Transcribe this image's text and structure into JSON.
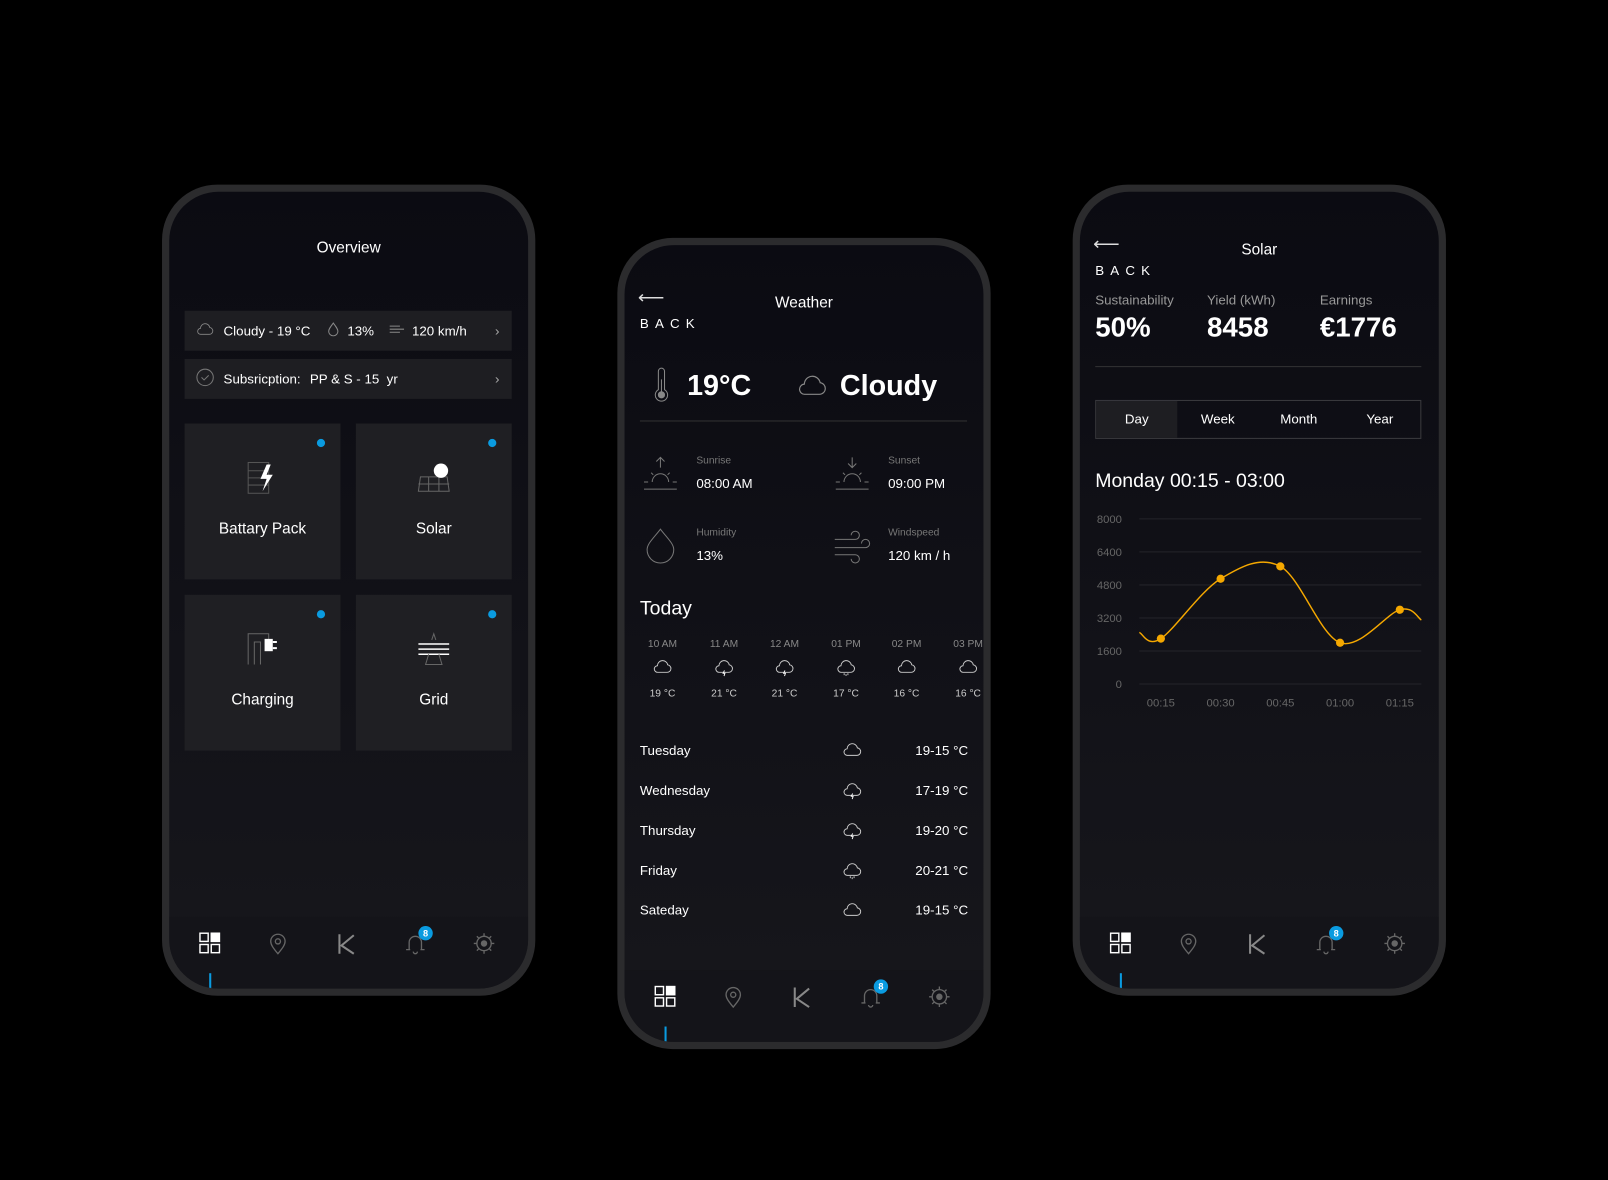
{
  "colors": {
    "accent": "#0a9be0",
    "chart_line": "#f5a800",
    "background": "#000000"
  },
  "nav": {
    "badge": "8",
    "items": [
      "dashboard-icon",
      "location-pin-icon",
      "k-logo-icon",
      "bell-icon",
      "gear-icon"
    ]
  },
  "overview": {
    "title": "Overview",
    "weather_bar": {
      "condition": "Cloudy - 19 °C",
      "humidity": "13%",
      "wind": "120 km/h"
    },
    "subscription": {
      "label": "Subsricption:",
      "value": "PP & S - 15  yr"
    },
    "tiles": [
      {
        "label": "Battary Pack",
        "icon": "battery-bolt-icon"
      },
      {
        "label": "Solar",
        "icon": "solar-panel-icon"
      },
      {
        "label": "Charging",
        "icon": "charging-plug-icon"
      },
      {
        "label": "Grid",
        "icon": "grid-pylon-icon"
      }
    ]
  },
  "weather": {
    "back": "BACK",
    "title": "Weather",
    "temperature": "19°C",
    "condition": "Cloudy",
    "sunrise": {
      "label": "Sunrise",
      "value": "08:00 AM"
    },
    "sunset": {
      "label": "Sunset",
      "value": "09:00 PM"
    },
    "humidity": {
      "label": "Humidity",
      "value": "13%"
    },
    "windspeed": {
      "label": "Windspeed",
      "value": "120 km / h"
    },
    "today_label": "Today",
    "hourly": [
      {
        "time": "10 AM",
        "icon": "cloud",
        "temp": "19 °C"
      },
      {
        "time": "11 AM",
        "icon": "cloud-lightning",
        "temp": "21 °C"
      },
      {
        "time": "12 AM",
        "icon": "cloud-lightning",
        "temp": "21 °C"
      },
      {
        "time": "01 PM",
        "icon": "cloud-rain",
        "temp": "17 °C"
      },
      {
        "time": "02 PM",
        "icon": "cloud",
        "temp": "16 °C"
      },
      {
        "time": "03 PM",
        "icon": "cloud",
        "temp": "16 °C"
      }
    ],
    "daily": [
      {
        "day": "Tuesday",
        "icon": "cloud",
        "temp": "19-15 °C"
      },
      {
        "day": "Wednesday",
        "icon": "cloud-lightning",
        "temp": "17-19 °C"
      },
      {
        "day": "Thursday",
        "icon": "cloud-lightning",
        "temp": "19-20 °C"
      },
      {
        "day": "Friday",
        "icon": "cloud-rain",
        "temp": "20-21 °C"
      },
      {
        "day": "Sateday",
        "icon": "cloud",
        "temp": "19-15 °C"
      }
    ]
  },
  "solar": {
    "back": "BACK",
    "title": "Solar",
    "stats": [
      {
        "label": "Sustainability",
        "value": "50%"
      },
      {
        "label": "Yield (kWh)",
        "value": "8458"
      },
      {
        "label": "Earnings",
        "value": "€1776"
      }
    ],
    "tabs": [
      "Day",
      "Week",
      "Month",
      "Year"
    ],
    "active_tab": "Day",
    "range_title": "Monday 00:15 - 03:00"
  },
  "chart_data": {
    "type": "line",
    "categories": [
      "00:15",
      "00:30",
      "00:45",
      "01:00",
      "01:15"
    ],
    "values": [
      2200,
      5100,
      5700,
      2000,
      3600
    ],
    "yticks": [
      0,
      1600,
      3200,
      4800,
      6400,
      8000
    ],
    "ylim": [
      0,
      8000
    ],
    "grid": true,
    "smooth": true
  }
}
